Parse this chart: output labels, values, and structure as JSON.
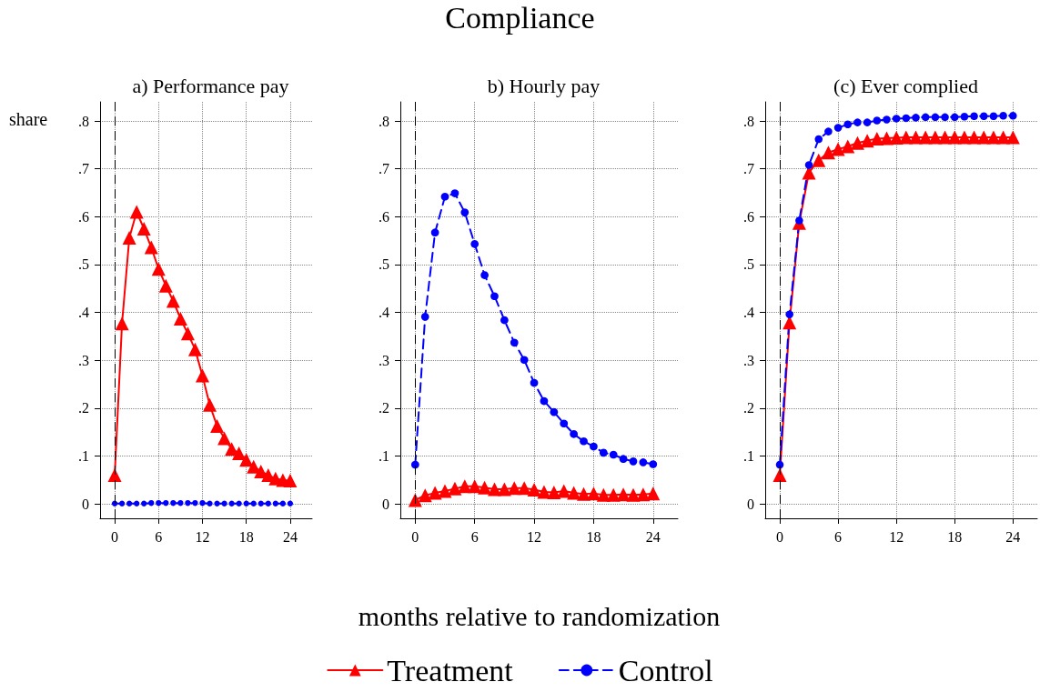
{
  "chart_data": [
    {
      "type": "line",
      "title": "a) Performance pay",
      "ylabel": "share",
      "x": [
        0,
        1,
        2,
        3,
        4,
        5,
        6,
        7,
        8,
        9,
        10,
        11,
        12,
        13,
        14,
        15,
        16,
        17,
        18,
        19,
        20,
        21,
        22,
        23,
        24
      ],
      "xlim": [
        -2,
        27
      ],
      "xticks": [
        0,
        6,
        12,
        18,
        24
      ],
      "ylim": [
        -0.03,
        0.84
      ],
      "yticks": [
        {
          "value": 0,
          "label": "0"
        },
        {
          "value": 0.1,
          "label": ".1"
        },
        {
          "value": 0.2,
          "label": ".2"
        },
        {
          "value": 0.3,
          "label": ".3"
        },
        {
          "value": 0.4,
          "label": ".4"
        },
        {
          "value": 0.5,
          "label": ".5"
        },
        {
          "value": 0.6,
          "label": ".6"
        },
        {
          "value": 0.7,
          "label": ".7"
        },
        {
          "value": 0.8,
          "label": ".8"
        }
      ],
      "grid": true,
      "legend": false,
      "ref_lines": [
        {
          "axis": "x",
          "value": 0,
          "color": "#000000",
          "line_style": "dashed"
        }
      ],
      "series": [
        {
          "color": "#ff0000",
          "marker": "triangle",
          "line_style": "solid",
          "values": [
            0.06,
            0.377,
            0.556,
            0.61,
            0.575,
            0.536,
            0.491,
            0.456,
            0.424,
            0.387,
            0.356,
            0.323,
            0.268,
            0.207,
            0.163,
            0.137,
            0.115,
            0.106,
            0.092,
            0.078,
            0.068,
            0.06,
            0.053,
            0.05,
            0.049
          ]
        },
        {
          "color": "#0000ff",
          "marker": "circle",
          "line_style": "dashed",
          "values": [
            0.001,
            0.001,
            0.001,
            0.001,
            0.001,
            0.002,
            0.002,
            0.002,
            0.002,
            0.002,
            0.002,
            0.002,
            0.002,
            0.001,
            0.001,
            0.001,
            0.001,
            0.001,
            0.001,
            0.001,
            0.001,
            0.001,
            0.001,
            0.001,
            0.001
          ]
        }
      ]
    },
    {
      "type": "line",
      "title": "b) Hourly pay",
      "xlabel": "months relative to randomization",
      "annotations": [
        "Compliance"
      ],
      "x": [
        0,
        1,
        2,
        3,
        4,
        5,
        6,
        7,
        8,
        9,
        10,
        11,
        12,
        13,
        14,
        15,
        16,
        17,
        18,
        19,
        20,
        21,
        22,
        23,
        24
      ],
      "xlim": [
        -1.5,
        26.5
      ],
      "xticks": [
        0,
        6,
        12,
        18,
        24
      ],
      "ylim": [
        -0.03,
        0.84
      ],
      "yticks": [
        {
          "value": 0,
          "label": "0"
        },
        {
          "value": 0.1,
          "label": ".1"
        },
        {
          "value": 0.2,
          "label": ".2"
        },
        {
          "value": 0.3,
          "label": ".3"
        },
        {
          "value": 0.4,
          "label": ".4"
        },
        {
          "value": 0.5,
          "label": ".5"
        },
        {
          "value": 0.6,
          "label": ".6"
        },
        {
          "value": 0.7,
          "label": ".7"
        },
        {
          "value": 0.8,
          "label": ".8"
        }
      ],
      "grid": true,
      "legend": "bottom",
      "ref_lines": [
        {
          "axis": "x",
          "value": 0,
          "color": "#000000",
          "line_style": "dashed"
        }
      ],
      "series": [
        {
          "name": "Treatment",
          "color": "#ff0000",
          "marker": "triangle",
          "line_style": "solid",
          "values": [
            0.008,
            0.018,
            0.023,
            0.027,
            0.032,
            0.037,
            0.037,
            0.034,
            0.031,
            0.031,
            0.033,
            0.033,
            0.03,
            0.025,
            0.024,
            0.027,
            0.023,
            0.021,
            0.022,
            0.019,
            0.019,
            0.02,
            0.019,
            0.02,
            0.022
          ]
        },
        {
          "name": "Control",
          "color": "#0000ff",
          "marker": "circle",
          "line_style": "dashed",
          "values": [
            0.082,
            0.391,
            0.567,
            0.642,
            0.649,
            0.609,
            0.543,
            0.478,
            0.434,
            0.384,
            0.337,
            0.301,
            0.253,
            0.215,
            0.192,
            0.168,
            0.146,
            0.131,
            0.12,
            0.107,
            0.103,
            0.094,
            0.089,
            0.087,
            0.083
          ]
        }
      ]
    },
    {
      "type": "line",
      "title": "(c) Ever complied",
      "x": [
        0,
        1,
        2,
        3,
        4,
        5,
        6,
        7,
        8,
        9,
        10,
        11,
        12,
        13,
        14,
        15,
        16,
        17,
        18,
        19,
        20,
        21,
        22,
        23,
        24
      ],
      "xlim": [
        -1.5,
        26.5
      ],
      "xticks": [
        0,
        6,
        12,
        18,
        24
      ],
      "ylim": [
        -0.03,
        0.84
      ],
      "yticks": [
        {
          "value": 0,
          "label": "0"
        },
        {
          "value": 0.1,
          "label": ".1"
        },
        {
          "value": 0.2,
          "label": ".2"
        },
        {
          "value": 0.3,
          "label": ".3"
        },
        {
          "value": 0.4,
          "label": ".4"
        },
        {
          "value": 0.5,
          "label": ".5"
        },
        {
          "value": 0.6,
          "label": ".6"
        },
        {
          "value": 0.7,
          "label": ".7"
        },
        {
          "value": 0.8,
          "label": ".8"
        }
      ],
      "grid": true,
      "legend": false,
      "ref_lines": [
        {
          "axis": "x",
          "value": 0,
          "color": "#000000",
          "line_style": "dashed"
        }
      ],
      "series": [
        {
          "color": "#ff0000",
          "marker": "triangle",
          "line_style": "solid",
          "values": [
            0.06,
            0.379,
            0.587,
            0.692,
            0.718,
            0.734,
            0.741,
            0.747,
            0.754,
            0.759,
            0.763,
            0.764,
            0.765,
            0.766,
            0.766,
            0.766,
            0.766,
            0.766,
            0.766,
            0.766,
            0.766,
            0.766,
            0.766,
            0.766,
            0.766
          ]
        },
        {
          "color": "#0000ff",
          "marker": "circle",
          "line_style": "dashed",
          "values": [
            0.082,
            0.396,
            0.592,
            0.708,
            0.762,
            0.778,
            0.786,
            0.793,
            0.797,
            0.797,
            0.801,
            0.803,
            0.805,
            0.806,
            0.807,
            0.808,
            0.808,
            0.808,
            0.808,
            0.809,
            0.81,
            0.81,
            0.81,
            0.811,
            0.811
          ]
        }
      ]
    }
  ]
}
